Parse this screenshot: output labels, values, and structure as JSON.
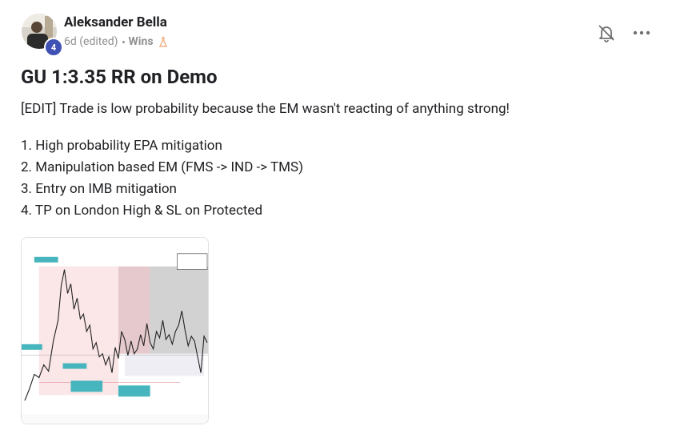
{
  "post": {
    "author": {
      "name": "Aleksander Bella",
      "level": "4"
    },
    "meta": {
      "time": "6d (edited)",
      "category": "Wins"
    },
    "title": "GU 1:3.35 RR on Demo",
    "body": {
      "paragraph": "[EDIT] Trade is low probability because the EM wasn't reacting of anything strong!",
      "list": [
        "1. High probability EPA mitigation",
        "2. Manipulation based EM (FMS -> IND -> TMS)",
        "3. Entry on IMB mitigation",
        "4. TP on London High & SL on Protected"
      ]
    }
  }
}
